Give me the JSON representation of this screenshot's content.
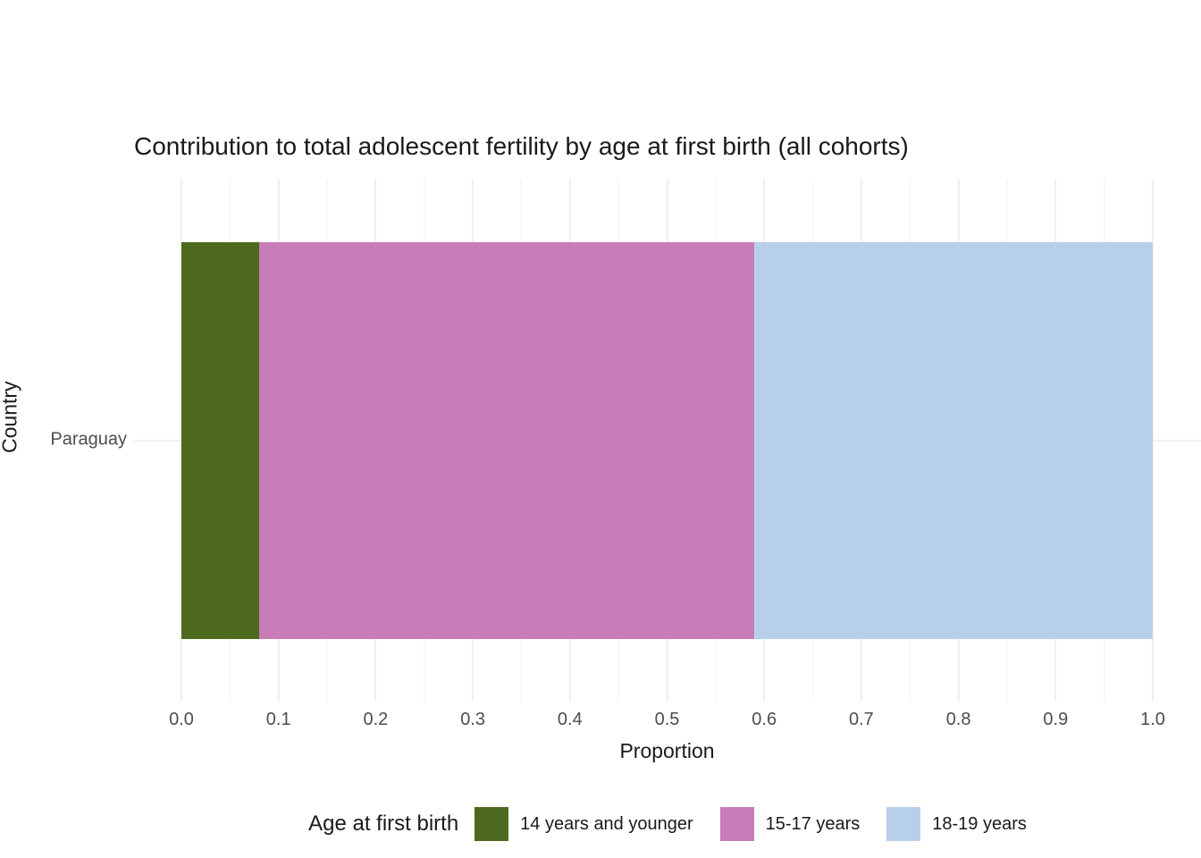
{
  "title": "Contribution to total adolescent fertility by age at first birth (all cohorts)",
  "chart_data": {
    "type": "bar",
    "orientation": "horizontal",
    "stacked": true,
    "title": "Contribution to total adolescent fertility by age at first birth (all cohorts)",
    "xlabel": "Proportion",
    "ylabel": "Country",
    "categories": [
      "Paraguay"
    ],
    "series": [
      {
        "name": "14 years and younger",
        "values": [
          0.08
        ],
        "color": "#4d691e"
      },
      {
        "name": "15-17 years",
        "values": [
          0.51
        ],
        "color": "#c77cb8"
      },
      {
        "name": "18-19 years",
        "values": [
          0.41
        ],
        "color": "#b8cfec"
      }
    ],
    "xlim": [
      0,
      1
    ],
    "x_ticks": [
      "0.0",
      "0.1",
      "0.2",
      "0.3",
      "0.4",
      "0.5",
      "0.6",
      "0.7",
      "0.8",
      "0.9",
      "1.0"
    ],
    "grid": "vertical major and minor, light gray on white",
    "legend_title": "Age at first birth",
    "legend_position": "bottom"
  },
  "axes": {
    "x_title": "Proportion",
    "y_title": "Country",
    "y_tick": "Paraguay"
  },
  "legend": {
    "title": "Age at first birth"
  },
  "colors": {
    "grid_major": "#e0e0e0",
    "grid_minor": "#f0f0f0",
    "tick_text": "#4d4d4d",
    "text": "#1a1a1a",
    "background": "#ffffff"
  }
}
